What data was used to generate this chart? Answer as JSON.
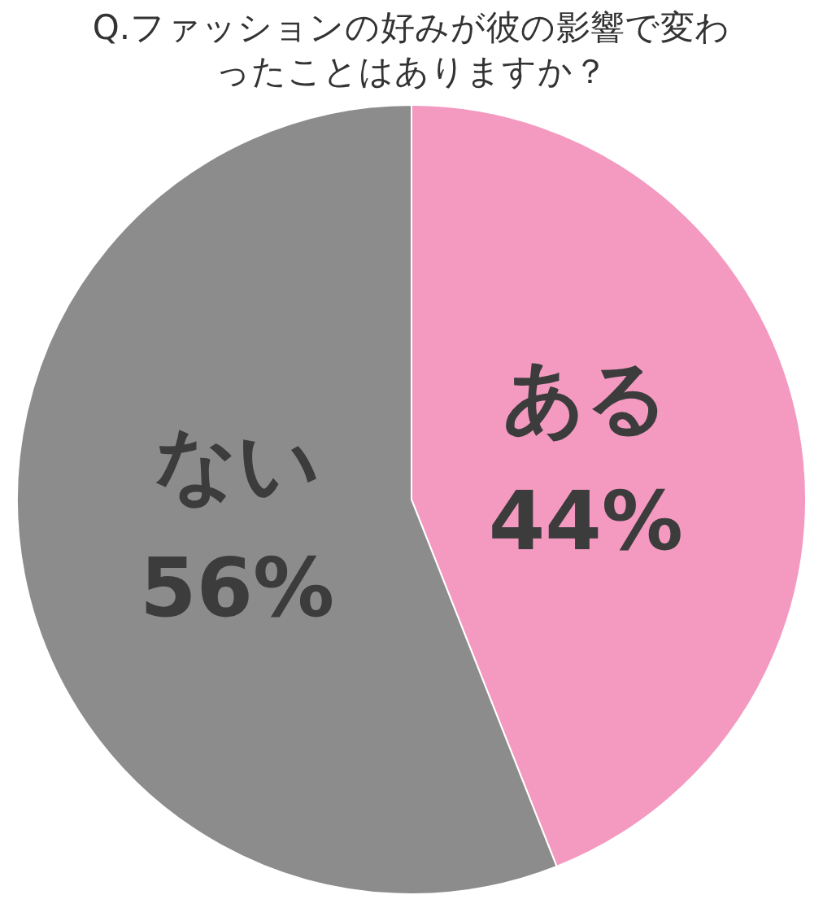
{
  "chart_data": {
    "type": "pie",
    "title": "Q.ファッションの好みが彼の影響で変わったことはありますか？",
    "categories": [
      "ある",
      "ない"
    ],
    "values": [
      44,
      56
    ],
    "value_labels": [
      "44%",
      "56%"
    ],
    "colors": [
      "#f49ac1",
      "#8c8c8c"
    ],
    "legend": false
  }
}
